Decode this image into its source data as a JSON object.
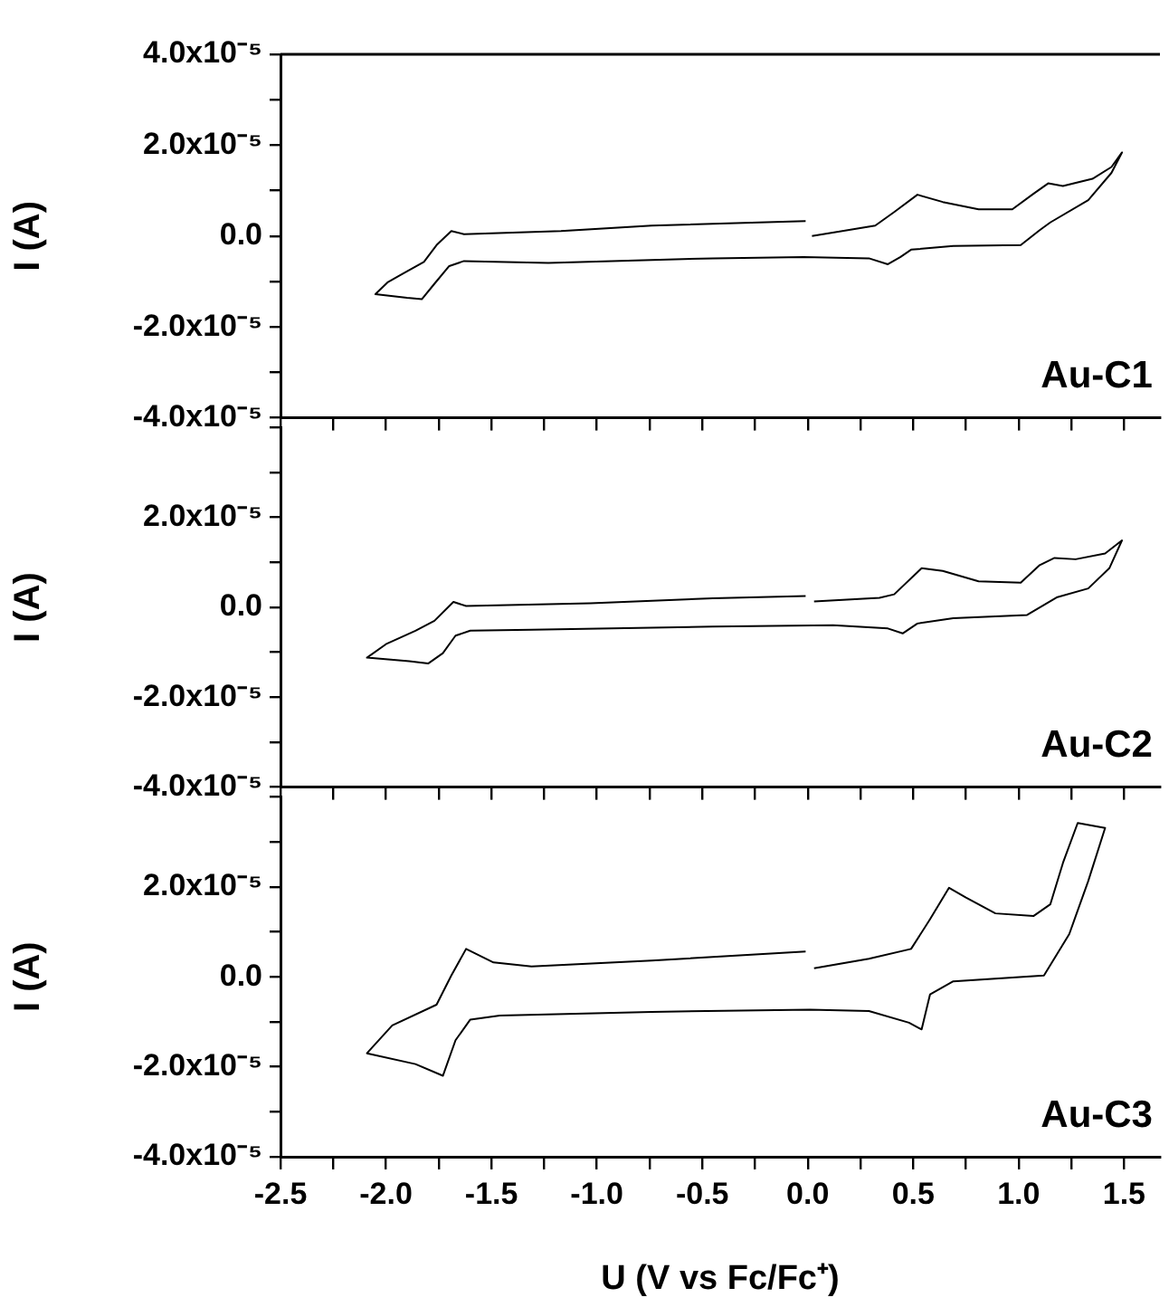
{
  "chart_data": [
    {
      "type": "line",
      "ylabel": "I (A)",
      "annotations": [
        "Au-C1"
      ],
      "tick_labels": "y",
      "color": "#000000",
      "xlim": [
        -2.5,
        1.67
      ],
      "ylim": [
        -4e-05,
        4e-05
      ],
      "xticks": [
        {
          "value": -2.5,
          "label": null
        },
        {
          "value": -2.25,
          "label": null
        },
        {
          "value": -2.0,
          "label": null
        },
        {
          "value": -1.75,
          "label": null
        },
        {
          "value": -1.5,
          "label": null
        },
        {
          "value": -1.25,
          "label": null
        },
        {
          "value": -1.0,
          "label": null
        },
        {
          "value": -0.75,
          "label": null
        },
        {
          "value": -0.5,
          "label": null
        },
        {
          "value": -0.25,
          "label": null
        },
        {
          "value": 0,
          "label": null
        },
        {
          "value": 0.25,
          "label": null
        },
        {
          "value": 0.5,
          "label": null
        },
        {
          "value": 0.75,
          "label": null
        },
        {
          "value": 1.0,
          "label": null
        },
        {
          "value": 1.25,
          "label": null
        },
        {
          "value": 1.5,
          "label": null
        }
      ],
      "yticks": [
        {
          "value": -4e-05,
          "label": "-4.0x10⁻⁵"
        },
        {
          "value": -3e-05,
          "label": null
        },
        {
          "value": -2e-05,
          "label": "-2.0x10⁻⁵"
        },
        {
          "value": -1e-05,
          "label": null
        },
        {
          "value": 0,
          "label": "0.0"
        },
        {
          "value": 1e-05,
          "label": null
        },
        {
          "value": 2e-05,
          "label": "2.0x10⁻⁵"
        },
        {
          "value": 3e-05,
          "label": null
        },
        {
          "value": 4e-05,
          "label": "4.0x10⁻⁵"
        }
      ],
      "x": [
        0.02,
        0.32,
        0.41,
        0.52,
        0.64,
        0.81,
        0.97,
        1.07,
        1.14,
        1.21,
        1.35,
        1.44,
        1.49,
        1.44,
        1.33,
        1.15,
        1.1,
        1.01,
        0.69,
        0.49,
        0.44,
        0.38,
        0.29,
        -0.02,
        -0.45,
        -1.23,
        -1.63,
        -1.7,
        -1.77,
        -1.83,
        -1.9,
        -2.05,
        -1.99,
        -1.92,
        -1.82,
        -1.76,
        -1.69,
        -1.63,
        -1.17,
        -0.74,
        -0.01
      ],
      "values": [
        0.0,
        2.3e-06,
        5.3e-06,
        9.1e-06,
        7.5e-06,
        5.9e-06,
        5.9e-06,
        9.3e-06,
        1.16e-05,
        1.1e-05,
        1.26e-05,
        1.52e-05,
        1.84e-05,
        1.39e-05,
        7.9e-06,
        3e-06,
        1.3e-06,
        -2e-06,
        -2.2e-06,
        -3e-06,
        -4.6e-06,
        -6.2e-06,
        -4.9e-06,
        -4.6e-06,
        -4.9e-06,
        -5.9e-06,
        -5.5e-06,
        -6.6e-06,
        -1.05e-05,
        -1.39e-05,
        -1.36e-05,
        -1.28e-05,
        -1.01e-05,
        -8.3e-06,
        -5.7e-06,
        -2e-06,
        1.1e-06,
        4e-07,
        1.1e-06,
        2.3e-06,
        3.3e-06
      ]
    },
    {
      "type": "line",
      "ylabel": "I (A)",
      "annotations": [
        "Au-C2"
      ],
      "tick_labels": "y",
      "color": "#000000",
      "xlim": [
        -2.5,
        1.67
      ],
      "ylim": [
        -4e-05,
        4e-05
      ],
      "xticks": [
        {
          "value": -2.5,
          "label": null
        },
        {
          "value": -2.25,
          "label": null
        },
        {
          "value": -2.0,
          "label": null
        },
        {
          "value": -1.75,
          "label": null
        },
        {
          "value": -1.5,
          "label": null
        },
        {
          "value": -1.25,
          "label": null
        },
        {
          "value": -1.0,
          "label": null
        },
        {
          "value": -0.75,
          "label": null
        },
        {
          "value": -0.5,
          "label": null
        },
        {
          "value": -0.25,
          "label": null
        },
        {
          "value": 0,
          "label": null
        },
        {
          "value": 0.25,
          "label": null
        },
        {
          "value": 0.5,
          "label": null
        },
        {
          "value": 0.75,
          "label": null
        },
        {
          "value": 1.0,
          "label": null
        },
        {
          "value": 1.25,
          "label": null
        },
        {
          "value": 1.5,
          "label": null
        }
      ],
      "yticks": [
        {
          "value": -4e-05,
          "label": "-4.0x10⁻⁵"
        },
        {
          "value": -3e-05,
          "label": null
        },
        {
          "value": -2e-05,
          "label": "-2.0x10⁻⁵"
        },
        {
          "value": -1e-05,
          "label": null
        },
        {
          "value": 0,
          "label": "0.0"
        },
        {
          "value": 1e-05,
          "label": null
        },
        {
          "value": 2e-05,
          "label": "2.0x10⁻⁵"
        },
        {
          "value": 3e-05,
          "label": null
        },
        {
          "value": 4e-05,
          "label": null
        }
      ],
      "x": [
        0.03,
        0.34,
        0.41,
        0.54,
        0.64,
        0.81,
        1.01,
        1.1,
        1.17,
        1.27,
        1.41,
        1.49,
        1.43,
        1.33,
        1.18,
        1.04,
        0.69,
        0.52,
        0.45,
        0.38,
        0.12,
        -0.45,
        -1.31,
        -1.6,
        -1.67,
        -1.73,
        -1.8,
        -1.89,
        -2.09,
        -2.0,
        -1.86,
        -1.77,
        -1.68,
        -1.62,
        -1.03,
        -0.45,
        -0.01
      ],
      "values": [
        1.3e-06,
        2.1e-06,
        2.9e-06,
        8.7e-06,
        8.1e-06,
        5.8e-06,
        5.5e-06,
        9.4e-06,
        1.1e-05,
        1.07e-05,
        1.2e-05,
        1.49e-05,
        8.7e-06,
        4.2e-06,
        2.2e-06,
        -1.7e-06,
        -2.4e-06,
        -3.6e-06,
        -5.8e-06,
        -4.7e-06,
        -4e-06,
        -4.3e-06,
        -5e-06,
        -5.2e-06,
        -6.3e-06,
        -1.02e-05,
        -1.25e-05,
        -1.2e-05,
        -1.12e-05,
        -8.2e-06,
        -5.2e-06,
        -3e-06,
        1.2e-06,
        3e-07,
        9e-07,
        2e-06,
        2.5e-06
      ]
    },
    {
      "type": "line",
      "ylabel": "I (A)",
      "xlabel": "U (V vs Fc/Fc⁺)",
      "annotations": [
        "Au-C3"
      ],
      "color": "#000000",
      "xlim": [
        -2.5,
        1.67
      ],
      "ylim": [
        -4e-05,
        4e-05
      ],
      "xticks": [
        {
          "value": -2.5,
          "label": "-2.5"
        },
        {
          "value": -2.25,
          "label": null
        },
        {
          "value": -2.0,
          "label": "-2.0"
        },
        {
          "value": -1.75,
          "label": null
        },
        {
          "value": -1.5,
          "label": "-1.5"
        },
        {
          "value": -1.25,
          "label": null
        },
        {
          "value": -1.0,
          "label": "-1.0"
        },
        {
          "value": -0.75,
          "label": null
        },
        {
          "value": -0.5,
          "label": "-0.5"
        },
        {
          "value": -0.25,
          "label": null
        },
        {
          "value": 0,
          "label": "0.0"
        },
        {
          "value": 0.25,
          "label": null
        },
        {
          "value": 0.5,
          "label": "0.5"
        },
        {
          "value": 0.75,
          "label": null
        },
        {
          "value": 1.0,
          "label": "1.0"
        },
        {
          "value": 1.25,
          "label": null
        },
        {
          "value": 1.5,
          "label": "1.5"
        }
      ],
      "yticks": [
        {
          "value": -4e-05,
          "label": "-4.0x10⁻⁵"
        },
        {
          "value": -3e-05,
          "label": null
        },
        {
          "value": -2e-05,
          "label": "-2.0x10⁻⁵"
        },
        {
          "value": -1e-05,
          "label": null
        },
        {
          "value": 0,
          "label": "0.0"
        },
        {
          "value": 1e-05,
          "label": null
        },
        {
          "value": 2e-05,
          "label": "2.0x10⁻⁵"
        },
        {
          "value": 3e-05,
          "label": null
        },
        {
          "value": 4e-05,
          "label": null
        }
      ],
      "x": [
        0.03,
        0.29,
        0.49,
        0.58,
        0.67,
        0.75,
        0.89,
        1.07,
        1.15,
        1.21,
        1.28,
        1.41,
        1.33,
        1.24,
        1.12,
        0.69,
        0.58,
        0.54,
        0.48,
        0.29,
        0.01,
        -0.74,
        -1.46,
        -1.6,
        -1.67,
        -1.73,
        -1.86,
        -2.09,
        -1.97,
        -1.76,
        -1.69,
        -1.62,
        -1.49,
        -1.31,
        -0.74,
        -0.01
      ],
      "values": [
        1.9e-06,
        4e-06,
        6.2e-06,
        1.28e-05,
        1.98e-05,
        1.76e-05,
        1.41e-05,
        1.35e-05,
        1.61e-05,
        2.53e-05,
        3.42e-05,
        3.31e-05,
        2.13e-05,
        9.5e-06,
        3e-07,
        -1e-06,
        -3.9e-06,
        -1.17e-05,
        -1.02e-05,
        -7.6e-06,
        -7.3e-06,
        -7.8e-06,
        -8.6e-06,
        -9.5e-06,
        -1.41e-05,
        -2.2e-05,
        -1.94e-05,
        -1.7e-05,
        -1.08e-05,
        -6.2e-06,
        3e-07,
        6.2e-06,
        3.2e-06,
        2.3e-06,
        3.6e-06,
        5.6e-06
      ]
    }
  ]
}
